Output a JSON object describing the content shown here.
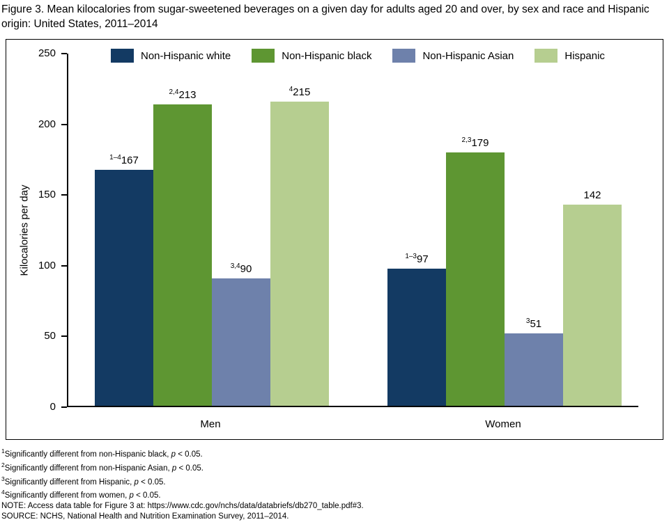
{
  "title": "Figure 3. Mean kilocalories from sugar-sweetened beverages on a given day for adults aged 20 and over, by sex and race and Hispanic origin: United States, 2011–2014",
  "chart_data": {
    "type": "bar",
    "categories": [
      "Men",
      "Women"
    ],
    "series": [
      {
        "name": "Non-Hispanic white",
        "color": "#133a63",
        "values": [
          167,
          97
        ],
        "superscripts": [
          "1–4",
          "1–3"
        ]
      },
      {
        "name": "Non-Hispanic black",
        "color": "#5e9632",
        "values": [
          213,
          179
        ],
        "superscripts": [
          "2,4",
          "2,3"
        ]
      },
      {
        "name": "Non-Hispanic Asian",
        "color": "#6e81ab",
        "values": [
          90,
          51
        ],
        "superscripts": [
          "3,4",
          "3"
        ]
      },
      {
        "name": "Hispanic",
        "color": "#b6ce90",
        "values": [
          215,
          142
        ],
        "superscripts": [
          "4",
          ""
        ]
      }
    ],
    "ylabel": "Kilocalories per day",
    "xlabel": "",
    "ylim": [
      0,
      250
    ],
    "yticks": [
      0,
      50,
      100,
      150,
      200,
      250
    ],
    "legend_position": "top",
    "grid": false
  },
  "footnotes": [
    {
      "sup": "1",
      "pre": "Significantly different from non-Hispanic black, ",
      "italic": "p",
      "post": " < 0.05."
    },
    {
      "sup": "2",
      "pre": "Significantly different from non-Hispanic Asian, ",
      "italic": "p",
      "post": " < 0.05."
    },
    {
      "sup": "3",
      "pre": "Significantly different from Hispanic, ",
      "italic": "p",
      "post": " < 0.05."
    },
    {
      "sup": "4",
      "pre": "Significantly different from women, ",
      "italic": "p",
      "post": " < 0.05."
    },
    {
      "sup": "",
      "pre": "NOTE: Access data table for Figure 3 at: https://www.cdc.gov/nchs/data/databriefs/db270_table.pdf#3.",
      "italic": "",
      "post": ""
    },
    {
      "sup": "",
      "pre": "SOURCE: NCHS, National Health and Nutrition Examination Survey, 2011–2014.",
      "italic": "",
      "post": ""
    }
  ]
}
